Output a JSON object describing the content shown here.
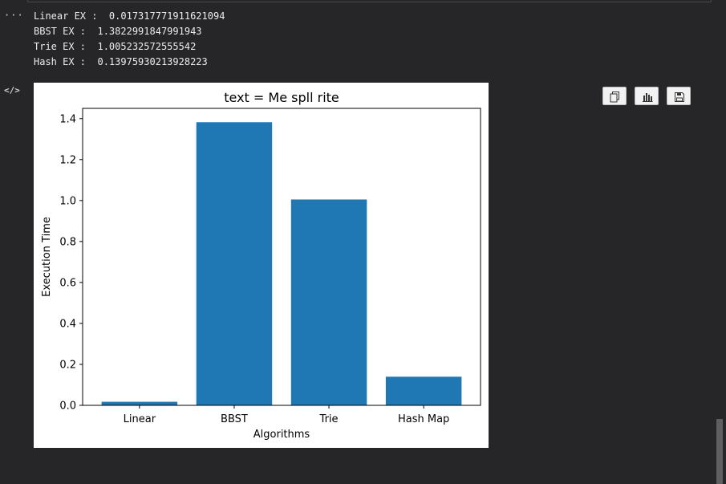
{
  "output": {
    "lines": [
      "Linear EX :  0.017317771911621094",
      "BBST EX :  1.3822991847991943",
      "Trie EX :  1.005232572555542",
      "Hash EX :  0.13975930213928223"
    ]
  },
  "gutter": {
    "output_icon": "···",
    "code_icon": "</>"
  },
  "toolbar": {
    "icons": [
      "copy-icon",
      "bar-chart-icon",
      "save-icon"
    ]
  },
  "chart_data": {
    "type": "bar",
    "title": "text = Me spll rite",
    "xlabel": "Algorithms",
    "ylabel": "Execution Time",
    "categories": [
      "Linear",
      "BBST",
      "Trie",
      "Hash Map"
    ],
    "values": [
      0.017317771911621094,
      1.3822991847991943,
      1.005232572555542,
      0.13975930213928223
    ],
    "ylim": [
      0,
      1.45
    ],
    "yticks": [
      0.0,
      0.2,
      0.4,
      0.6,
      0.8,
      1.0,
      1.2,
      1.4
    ],
    "ytick_labels": [
      "0.0",
      "0.2",
      "0.4",
      "0.6",
      "0.8",
      "1.0",
      "1.2",
      "1.4"
    ],
    "grid": false,
    "bar_color": "#1f77b4"
  }
}
